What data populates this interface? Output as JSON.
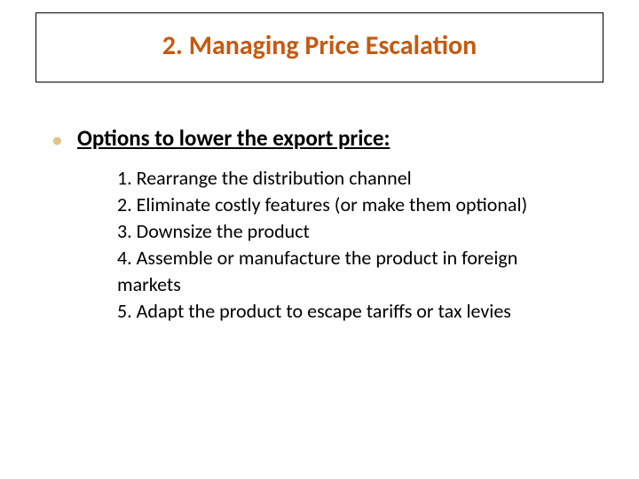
{
  "slide": {
    "title": "2. Managing Price Escalation",
    "title_color": "#c55a11",
    "title_fontsize": 30,
    "title_box_border": "#000000",
    "bullet_marker_color": "#e0c48a",
    "heading": "Options to lower the export price:",
    "heading_fontsize": 25,
    "heading_color": "#000000",
    "items": [
      "1. Rearrange the distribution channel",
      "2. Eliminate costly features (or make them optional)",
      "3. Downsize the product",
      "4. Assemble or manufacture the product in foreign markets",
      "5. Adapt the product to escape tariffs or tax levies"
    ],
    "item_fontsize": 22,
    "item_color": "#000000",
    "background_color": "#ffffff"
  }
}
